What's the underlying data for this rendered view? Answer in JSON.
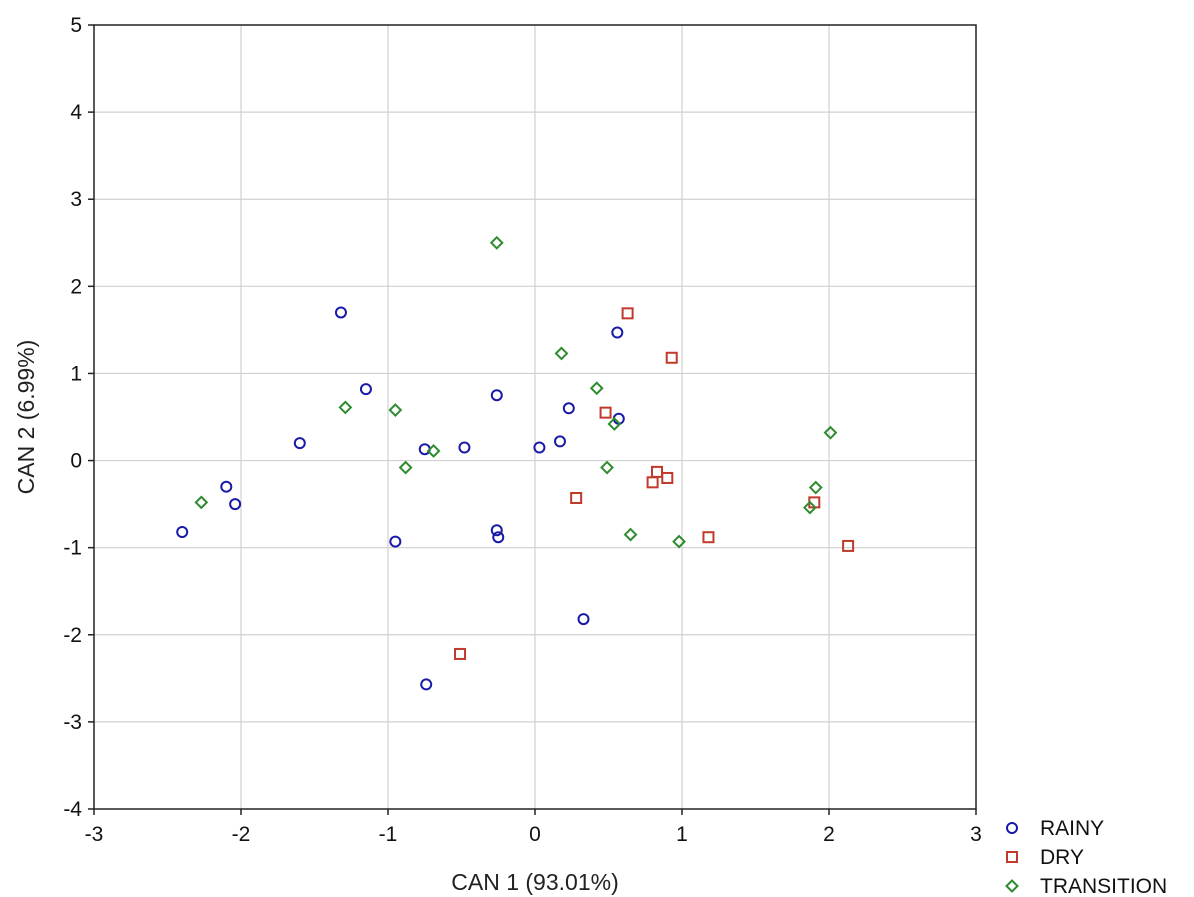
{
  "chart_data": {
    "type": "scatter",
    "title": "",
    "xlabel": "CAN 1 (93.01%)",
    "ylabel": "CAN 2 (6.99%)",
    "xlim": [
      -3,
      3
    ],
    "ylim": [
      -4,
      5
    ],
    "xticks": [
      "-3",
      "-2",
      "-1",
      "0",
      "1",
      "2",
      "3"
    ],
    "yticks": [
      "-4",
      "-3",
      "-2",
      "-1",
      "0",
      "1",
      "2",
      "3",
      "4",
      "5"
    ],
    "grid": true,
    "legend_position": "bottom-right",
    "series": [
      {
        "name": "RAINY",
        "marker": "circle",
        "color": "#1a1aa8",
        "points": [
          [
            -1.32,
            1.7
          ],
          [
            -1.15,
            0.82
          ],
          [
            -1.6,
            0.2
          ],
          [
            -2.1,
            -0.3
          ],
          [
            -2.04,
            -0.5
          ],
          [
            -2.4,
            -0.82
          ],
          [
            -0.75,
            0.13
          ],
          [
            -0.48,
            0.15
          ],
          [
            -0.26,
            0.75
          ],
          [
            -0.95,
            -0.93
          ],
          [
            -0.26,
            -0.8
          ],
          [
            -0.25,
            -0.88
          ],
          [
            0.03,
            0.15
          ],
          [
            0.17,
            0.22
          ],
          [
            0.23,
            0.6
          ],
          [
            0.56,
            1.47
          ],
          [
            0.57,
            0.48
          ],
          [
            0.33,
            -1.82
          ],
          [
            -0.74,
            -2.57
          ]
        ]
      },
      {
        "name": "DRY",
        "marker": "square",
        "color": "#c0392b",
        "points": [
          [
            0.63,
            1.69
          ],
          [
            0.93,
            1.18
          ],
          [
            0.48,
            0.55
          ],
          [
            0.83,
            -0.13
          ],
          [
            0.8,
            -0.25
          ],
          [
            0.9,
            -0.2
          ],
          [
            0.28,
            -0.43
          ],
          [
            1.18,
            -0.88
          ],
          [
            1.9,
            -0.48
          ],
          [
            2.13,
            -0.98
          ],
          [
            -0.51,
            -2.22
          ]
        ]
      },
      {
        "name": "TRANSITION",
        "marker": "diamond",
        "color": "#2e8b2e",
        "points": [
          [
            -0.26,
            2.5
          ],
          [
            0.18,
            1.23
          ],
          [
            0.42,
            0.83
          ],
          [
            0.54,
            0.42
          ],
          [
            0.49,
            -0.08
          ],
          [
            0.65,
            -0.85
          ],
          [
            0.98,
            -0.93
          ],
          [
            -1.29,
            0.61
          ],
          [
            -0.95,
            0.58
          ],
          [
            -0.88,
            -0.08
          ],
          [
            -0.69,
            0.11
          ],
          [
            -2.27,
            -0.48
          ],
          [
            2.01,
            0.32
          ],
          [
            1.91,
            -0.31
          ],
          [
            1.87,
            -0.54
          ]
        ]
      }
    ]
  }
}
